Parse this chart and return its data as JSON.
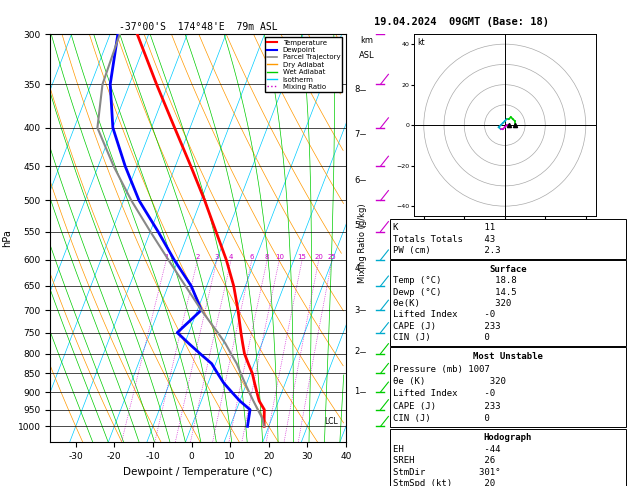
{
  "title_left": "-37°00'S  174°48'E  79m ASL",
  "title_right": "19.04.2024  09GMT (Base: 18)",
  "xlabel": "Dewpoint / Temperature (°C)",
  "ylabel_left": "hPa",
  "bg_color": "#ffffff",
  "xlim": [
    -35,
    40
  ],
  "skew_factor": 0.9,
  "temp_profile": {
    "pressure": [
      1000,
      975,
      950,
      925,
      900,
      875,
      850,
      825,
      800,
      775,
      750,
      700,
      650,
      600,
      550,
      500,
      450,
      400,
      350,
      300
    ],
    "temp": [
      18.8,
      18.0,
      17.2,
      15.0,
      13.5,
      12.0,
      10.5,
      8.5,
      6.5,
      5.0,
      3.5,
      0.5,
      -3.0,
      -7.5,
      -13.0,
      -19.0,
      -26.0,
      -34.0,
      -43.0,
      -53.0
    ],
    "color": "#ff0000",
    "linewidth": 2.0
  },
  "dewp_profile": {
    "pressure": [
      1000,
      975,
      950,
      925,
      900,
      875,
      850,
      825,
      800,
      775,
      750,
      700,
      650,
      600,
      550,
      500,
      450,
      400,
      350,
      300
    ],
    "dewp": [
      14.5,
      14.0,
      13.5,
      10.0,
      7.0,
      4.0,
      1.5,
      -1.0,
      -5.0,
      -9.0,
      -13.0,
      -9.0,
      -14.0,
      -21.0,
      -28.0,
      -36.0,
      -43.0,
      -50.0,
      -55.0,
      -58.0
    ],
    "color": "#0000ff",
    "linewidth": 2.0
  },
  "parcel_profile": {
    "pressure": [
      1000,
      975,
      950,
      925,
      900,
      875,
      850,
      825,
      800,
      775,
      750,
      700,
      650,
      600,
      550,
      500,
      450,
      400,
      350,
      300
    ],
    "temp": [
      18.8,
      17.5,
      15.5,
      13.5,
      11.5,
      9.5,
      7.5,
      5.5,
      3.0,
      0.5,
      -2.5,
      -9.0,
      -15.5,
      -22.5,
      -30.0,
      -38.0,
      -46.0,
      -54.0,
      -57.0,
      -57.5
    ],
    "color": "#888888",
    "linewidth": 1.5
  },
  "isotherm_color": "#00ccff",
  "isotherm_lw": 0.5,
  "dry_adiabat_color": "#ff9900",
  "dry_adiabat_lw": 0.5,
  "wet_adiabat_color": "#00cc00",
  "wet_adiabat_lw": 0.5,
  "mixing_ratio_color": "#cc00cc",
  "mixing_ratio_lw": 0.5,
  "mixing_ratio_values": [
    1,
    2,
    3,
    4,
    6,
    8,
    10,
    15,
    20,
    25
  ],
  "pressure_levels": [
    300,
    350,
    400,
    450,
    500,
    550,
    600,
    650,
    700,
    750,
    800,
    850,
    900,
    950,
    1000
  ],
  "km_ticks": {
    "values": [
      1,
      2,
      3,
      4,
      5,
      6,
      7,
      8
    ],
    "pressures": [
      899,
      795,
      700,
      616,
      540,
      470,
      408,
      356
    ]
  },
  "lcl_pressure": 985,
  "wind_barbs_colored": {
    "pressures": [
      300,
      350,
      400,
      450,
      500,
      550,
      600,
      650,
      700,
      750,
      800,
      850,
      900,
      950,
      1000
    ],
    "colors": [
      "#cc00cc",
      "#cc00cc",
      "#cc00cc",
      "#cc00cc",
      "#cc00cc",
      "#cc00cc",
      "#00aacc",
      "#00aacc",
      "#00aacc",
      "#00aacc",
      "#00cc00",
      "#00cc00",
      "#00cc00",
      "#00cc00",
      "#00cc00"
    ]
  },
  "stats": {
    "K": 11,
    "TotalsTotals": 43,
    "PW": 2.3,
    "SurfTemp": 18.8,
    "SurfDewp": 14.5,
    "SurfTheta": 320,
    "LiftedIndex": "-0",
    "CAPE": 233,
    "CIN": 0,
    "MU_Pressure": 1007,
    "MU_Theta": 320,
    "MU_LI": "-0",
    "MU_CAPE": 233,
    "MU_CIN": 0,
    "EH": -44,
    "SREH": 26,
    "StmDir": "301°",
    "StmSpd": 20
  },
  "hodograph_u": [
    5,
    5,
    4,
    3,
    2,
    1,
    0,
    -1,
    -2,
    -3,
    -2,
    -1,
    0,
    1,
    2
  ],
  "hodograph_v": [
    0,
    2,
    3,
    4,
    3,
    3,
    2,
    1,
    0,
    -1,
    -2,
    -2,
    -1,
    0,
    0
  ],
  "hodo_colors": [
    "#00cc00",
    "#00cc00",
    "#00cc00",
    "#00cc00",
    "#00cc00",
    "#00aacc",
    "#00aacc",
    "#00aacc",
    "#00aacc",
    "#00aacc",
    "#cc00cc",
    "#cc00cc",
    "#cc00cc",
    "#cc00cc",
    "#cc00cc"
  ]
}
